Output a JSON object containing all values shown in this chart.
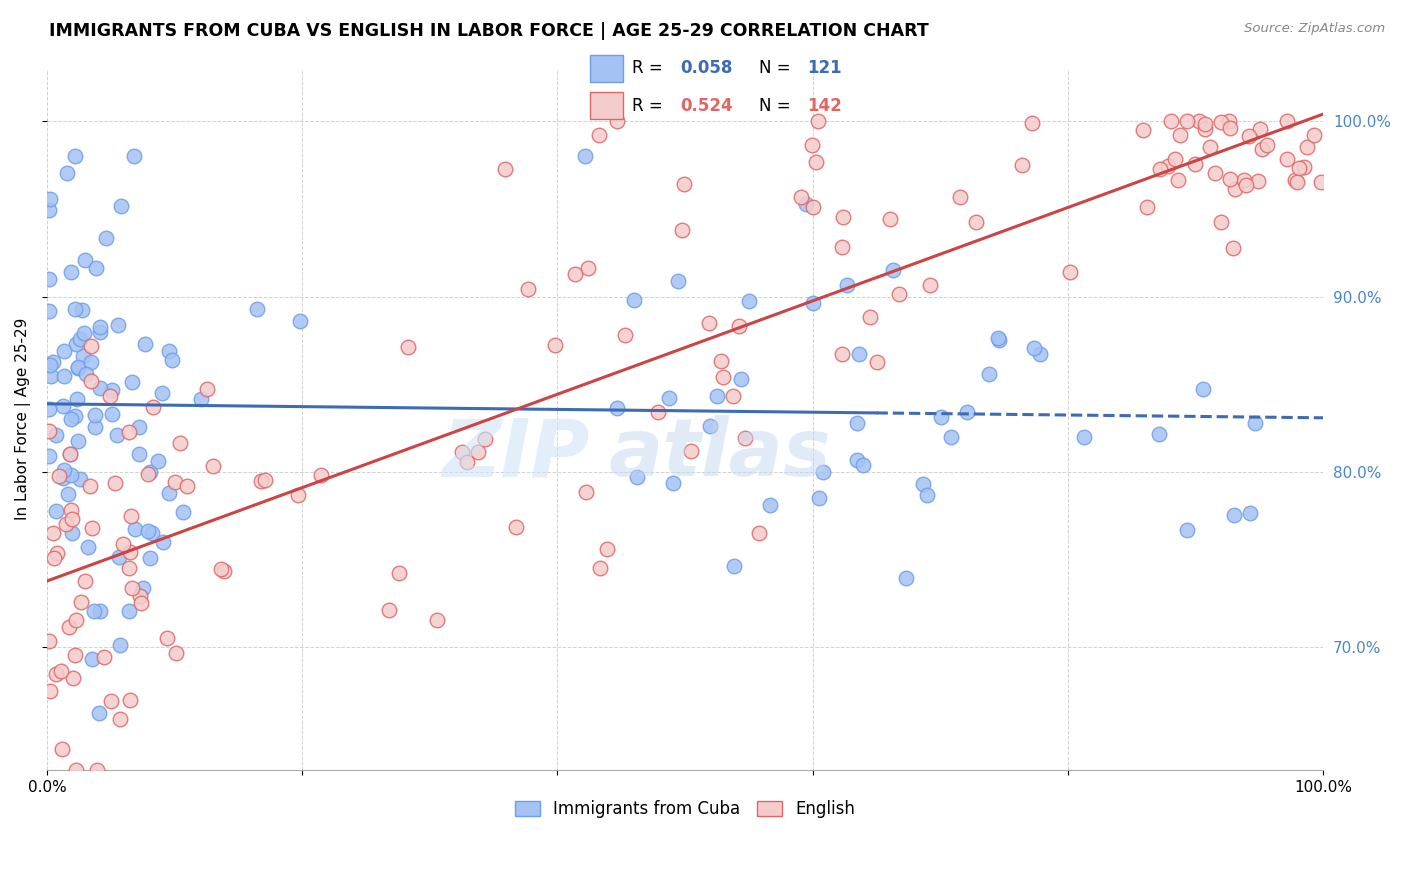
{
  "title": "IMMIGRANTS FROM CUBA VS ENGLISH IN LABOR FORCE | AGE 25-29 CORRELATION CHART",
  "source": "Source: ZipAtlas.com",
  "ylabel": "In Labor Force | Age 25-29",
  "legend_label_blue": "Immigrants from Cuba",
  "legend_label_pink": "English",
  "blue_R": 0.058,
  "blue_N": 121,
  "pink_R": 0.524,
  "pink_N": 142,
  "blue_color": "#a4c2f4",
  "pink_color": "#f4cccc",
  "blue_edge_color": "#6d9eeb",
  "pink_edge_color": "#e06666",
  "blue_line_color": "#3d6bb5",
  "pink_line_color": "#cc4444",
  "right_axis_color": "#4a86c8",
  "background_color": "#ffffff",
  "grid_color": "#cccccc",
  "xlim": [
    0.0,
    1.0
  ],
  "ylim": [
    0.63,
    1.03
  ],
  "yticks": [
    0.7,
    0.8,
    0.9,
    1.0
  ],
  "ytick_labels": [
    "70.0%",
    "80.0%",
    "90.0%",
    "100.0%"
  ]
}
